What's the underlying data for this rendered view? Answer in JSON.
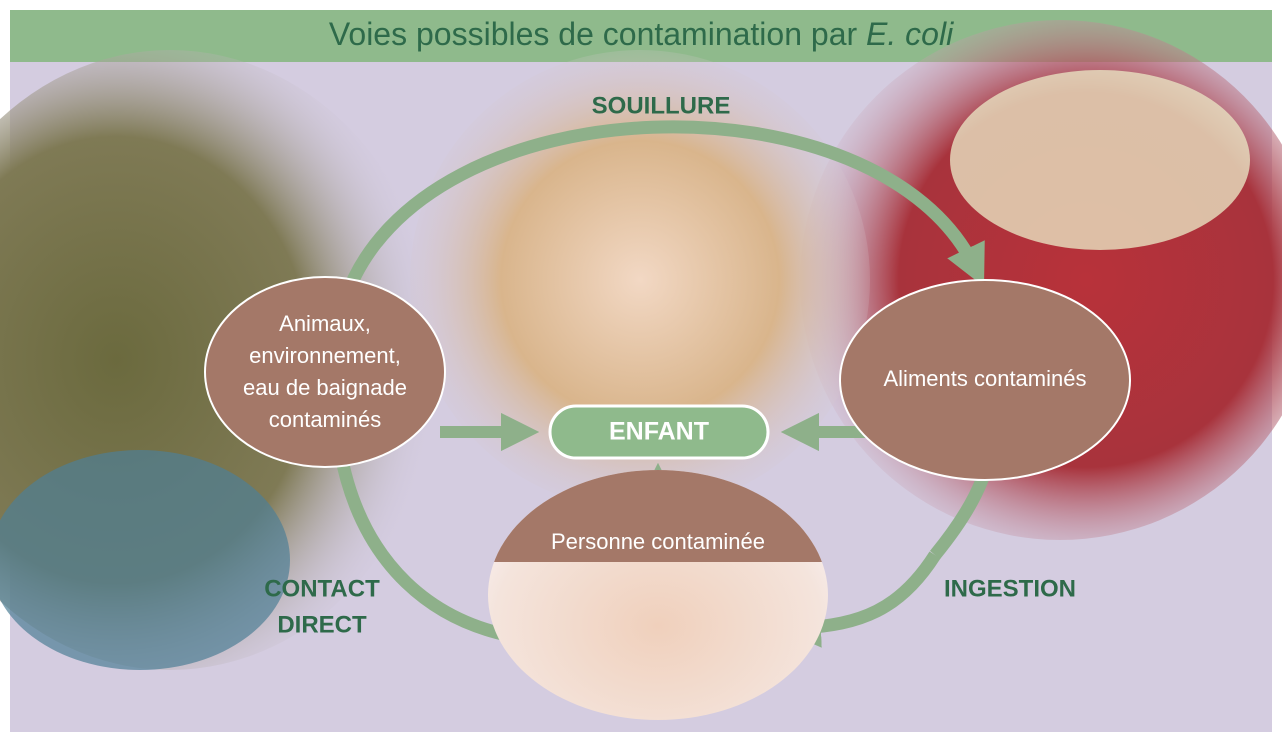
{
  "header": {
    "title": "Voies possibles de contamination par",
    "title_italic": "E. coli"
  },
  "nodes": [
    {
      "lines": [
        "Animaux,",
        "environnement,",
        "eau de baignade",
        "contaminés"
      ]
    },
    {
      "label": "ENFANT"
    },
    {
      "label": "Aliments contaminés"
    },
    {
      "label": "Personne contaminée"
    }
  ],
  "edges": [
    {
      "lines": [
        "SOUILLURE"
      ]
    },
    {
      "lines": [
        "CONTACT",
        "DIRECT"
      ]
    },
    {
      "lines": [
        "INGESTION"
      ]
    }
  ]
}
